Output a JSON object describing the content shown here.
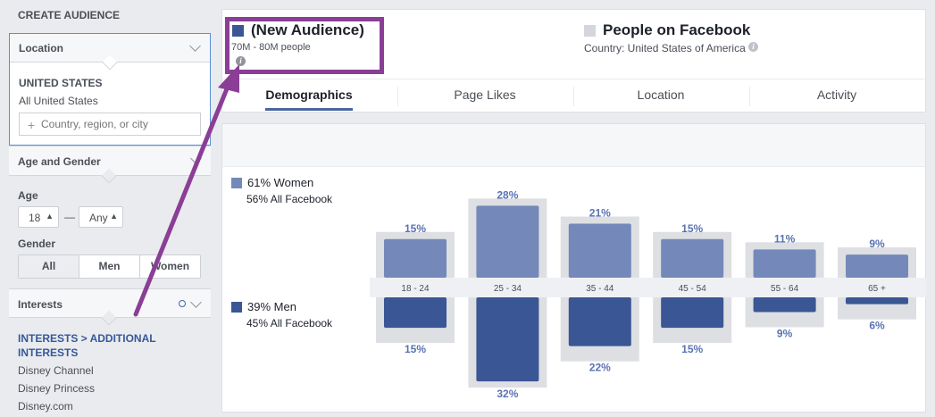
{
  "sidebar": {
    "title": "CREATE AUDIENCE",
    "location": {
      "label": "Location",
      "country": "UNITED STATES",
      "subtitle": "All United States",
      "input_placeholder": "Country, region, or city"
    },
    "age_gender": {
      "label": "Age and Gender",
      "age_label": "Age",
      "age_min": "18",
      "age_max": "Any",
      "gender_label": "Gender",
      "gender_options": [
        "All",
        "Men",
        "Women"
      ],
      "selected_gender": "All"
    },
    "interests": {
      "label": "Interests",
      "path": "INTERESTS > ADDITIONAL INTERESTS",
      "items": [
        "Disney Channel",
        "Disney Princess",
        "Disney.com"
      ]
    }
  },
  "header": {
    "audience": {
      "title": "(New Audience)",
      "size": "70M - 80M people",
      "color": "#3b5694"
    },
    "facebook": {
      "title": "People on Facebook",
      "country": "Country: United States of America",
      "color": "#d3d6db"
    },
    "highlight_color": "#8a3e96"
  },
  "tabs": [
    "Demographics",
    "Page Likes",
    "Location",
    "Activity"
  ],
  "active_tab": "Demographics",
  "chart_data": {
    "type": "bar",
    "categories": [
      "18 - 24",
      "25 - 34",
      "35 - 44",
      "45 - 54",
      "55 - 64",
      "65 +"
    ],
    "series": [
      {
        "name": "61% Women",
        "values": [
          15,
          28,
          21,
          15,
          11,
          9
        ],
        "labels": [
          "15%",
          "28%",
          "21%",
          "15%",
          "11%",
          "9%"
        ],
        "color": "#7489ba"
      },
      {
        "name": "39% Men",
        "values": [
          15,
          32,
          22,
          15,
          9,
          6
        ],
        "labels": [
          "15%",
          "32%",
          "22%",
          "15%",
          "9%",
          "6%"
        ],
        "color": "#3b5694"
      }
    ],
    "legend": [
      {
        "title": "61% Women",
        "subtitle": "56% All Facebook",
        "color": "#7489ba"
      },
      {
        "title": "39% Men",
        "subtitle": "45% All Facebook",
        "color": "#3b5694"
      }
    ],
    "background_color": "#dddfe2",
    "label_color": "#5973b3"
  }
}
